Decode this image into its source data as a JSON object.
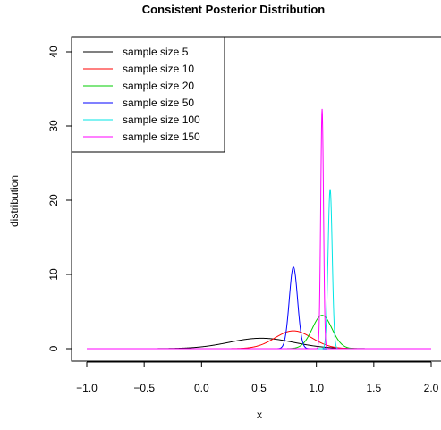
{
  "chart_data": {
    "type": "line",
    "title": "Consistent Posterior Distribution",
    "xlabel": "x",
    "ylabel": "distribution",
    "xlim": [
      -1.0,
      2.0
    ],
    "ylim": [
      0,
      40
    ],
    "x_ticks": [
      "−1.0",
      "−0.5",
      "0.0",
      "0.5",
      "1.0",
      "1.5",
      "2.0"
    ],
    "x_tick_values": [
      -1.0,
      -0.5,
      0.0,
      0.5,
      1.0,
      1.5,
      2.0
    ],
    "y_ticks": [
      "0",
      "10",
      "20",
      "30",
      "40"
    ],
    "y_tick_values": [
      0,
      10,
      20,
      30,
      40
    ],
    "grid": false,
    "legend_position": "top-left",
    "series": [
      {
        "name": "sample size 5",
        "color": "#000000",
        "peak_x": 0.52,
        "peak_y": 1.4,
        "sd": 0.28
      },
      {
        "name": "sample size 10",
        "color": "#ff0000",
        "peak_x": 0.8,
        "peak_y": 2.4,
        "sd": 0.16
      },
      {
        "name": "sample size 20",
        "color": "#00cd00",
        "peak_x": 1.05,
        "peak_y": 4.5,
        "sd": 0.085
      },
      {
        "name": "sample size 50",
        "color": "#0000ff",
        "peak_x": 0.8,
        "peak_y": 11.0,
        "sd": 0.036
      },
      {
        "name": "sample size 100",
        "color": "#00e5e5",
        "peak_x": 1.12,
        "peak_y": 21.5,
        "sd": 0.018
      },
      {
        "name": "sample size 150",
        "color": "#ff00ff",
        "peak_x": 1.05,
        "peak_y": 32.3,
        "sd": 0.012
      }
    ]
  }
}
